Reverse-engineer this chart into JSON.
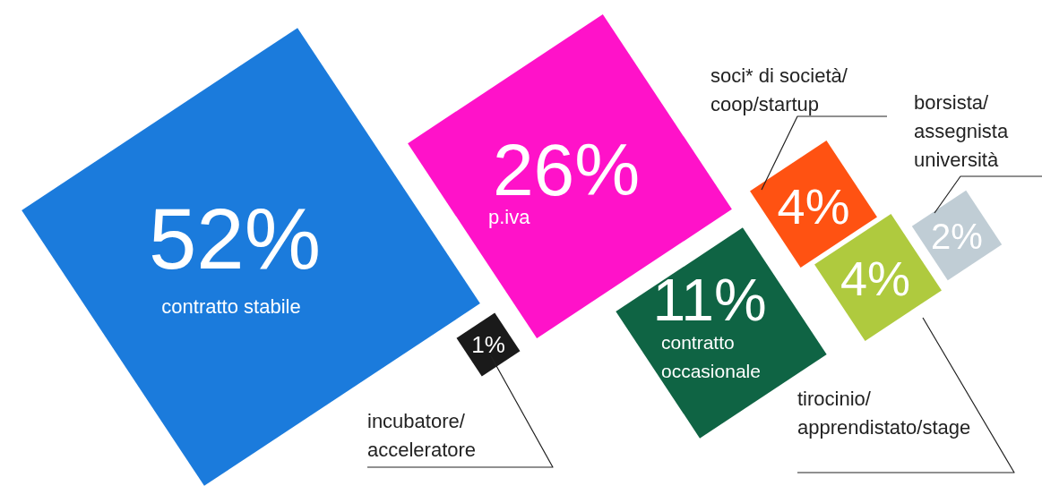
{
  "chart_data": {
    "type": "other",
    "categories": [
      "contratto stabile",
      "p.iva",
      "contratto occasionale",
      "soci* di società/coop/startup",
      "tirocinio/apprendistato/stage",
      "borsista/assegnista università",
      "incubatore/acceleratore"
    ],
    "values": [
      52,
      26,
      11,
      4,
      4,
      2,
      1
    ],
    "value_labels": [
      "52%",
      "26%",
      "11%",
      "4%",
      "4%",
      "2%",
      "1%"
    ],
    "colors": [
      "#1b7bdc",
      "#ff12c9",
      "#0f6444",
      "#ff5212",
      "#afca3e",
      "#c0cdd5",
      "#1a1a1a"
    ]
  }
}
